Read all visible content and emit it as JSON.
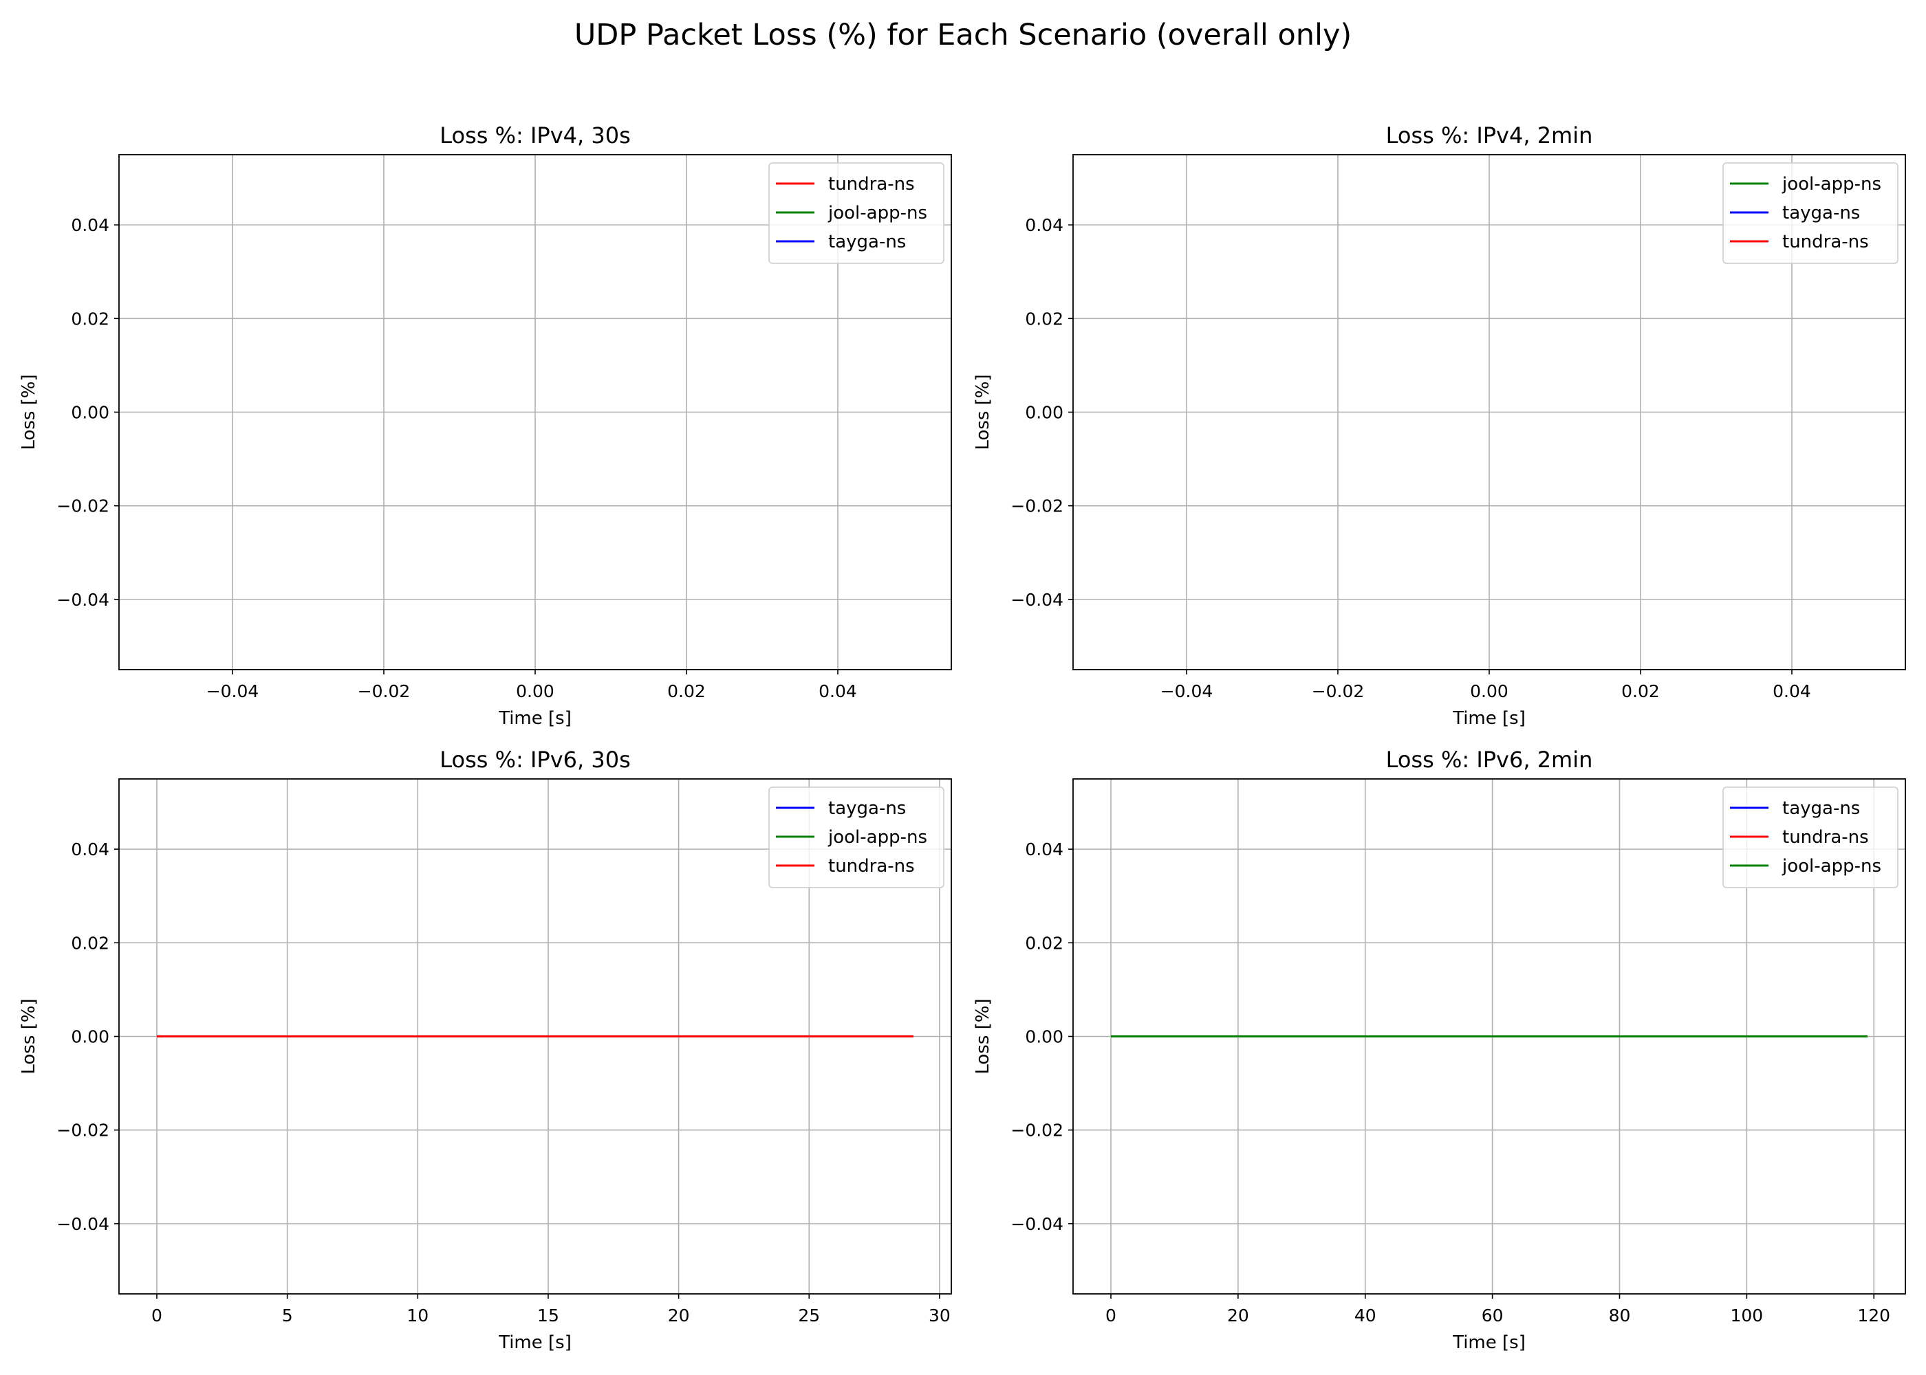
{
  "figure": {
    "suptitle": "UDP Packet Loss (%) for Each Scenario (overall only)"
  },
  "chart_data": [
    {
      "type": "line",
      "title": "Loss %: IPv4, 30s",
      "xlabel": "Time [s]",
      "ylabel": "Loss [%]",
      "xlim": [
        -0.055,
        0.055
      ],
      "ylim": [
        -0.055,
        0.055
      ],
      "xticks": [
        -0.04,
        -0.02,
        0.0,
        0.02,
        0.04
      ],
      "xtick_labels": [
        "−0.04",
        "−0.02",
        "0.00",
        "0.02",
        "0.04"
      ],
      "yticks": [
        -0.04,
        -0.02,
        0.0,
        0.02,
        0.04
      ],
      "ytick_labels": [
        "−0.04",
        "−0.02",
        "0.00",
        "0.02",
        "0.04"
      ],
      "grid": true,
      "legend_position": "top-right",
      "series": [
        {
          "name": "tundra-ns",
          "color": "#ff0000",
          "x": [],
          "y": []
        },
        {
          "name": "jool-app-ns",
          "color": "#008000",
          "x": [],
          "y": []
        },
        {
          "name": "tayga-ns",
          "color": "#0000ff",
          "x": [],
          "y": []
        }
      ]
    },
    {
      "type": "line",
      "title": "Loss %: IPv4, 2min",
      "xlabel": "Time [s]",
      "ylabel": "Loss [%]",
      "xlim": [
        -0.055,
        0.055
      ],
      "ylim": [
        -0.055,
        0.055
      ],
      "xticks": [
        -0.04,
        -0.02,
        0.0,
        0.02,
        0.04
      ],
      "xtick_labels": [
        "−0.04",
        "−0.02",
        "0.00",
        "0.02",
        "0.04"
      ],
      "yticks": [
        -0.04,
        -0.02,
        0.0,
        0.02,
        0.04
      ],
      "ytick_labels": [
        "−0.04",
        "−0.02",
        "0.00",
        "0.02",
        "0.04"
      ],
      "grid": true,
      "legend_position": "top-right",
      "series": [
        {
          "name": "jool-app-ns",
          "color": "#008000",
          "x": [],
          "y": []
        },
        {
          "name": "tayga-ns",
          "color": "#0000ff",
          "x": [],
          "y": []
        },
        {
          "name": "tundra-ns",
          "color": "#ff0000",
          "x": [],
          "y": []
        }
      ]
    },
    {
      "type": "line",
      "title": "Loss %: IPv6, 30s",
      "xlabel": "Time [s]",
      "ylabel": "Loss [%]",
      "xlim": [
        -1.45,
        30.45
      ],
      "ylim": [
        -0.055,
        0.055
      ],
      "xticks": [
        0,
        5,
        10,
        15,
        20,
        25,
        30
      ],
      "xtick_labels": [
        "0",
        "5",
        "10",
        "15",
        "20",
        "25",
        "30"
      ],
      "yticks": [
        -0.04,
        -0.02,
        0.0,
        0.02,
        0.04
      ],
      "ytick_labels": [
        "−0.04",
        "−0.02",
        "0.00",
        "0.02",
        "0.04"
      ],
      "grid": true,
      "legend_position": "top-right",
      "series": [
        {
          "name": "tayga-ns",
          "color": "#0000ff",
          "x": [
            0,
            29
          ],
          "y": [
            0,
            0
          ]
        },
        {
          "name": "jool-app-ns",
          "color": "#008000",
          "x": [
            0,
            29
          ],
          "y": [
            0,
            0
          ]
        },
        {
          "name": "tundra-ns",
          "color": "#ff0000",
          "x": [
            0,
            29
          ],
          "y": [
            0,
            0
          ]
        }
      ]
    },
    {
      "type": "line",
      "title": "Loss %: IPv6, 2min",
      "xlabel": "Time [s]",
      "ylabel": "Loss [%]",
      "xlim": [
        -5.95,
        124.95
      ],
      "ylim": [
        -0.055,
        0.055
      ],
      "xticks": [
        0,
        20,
        40,
        60,
        80,
        100,
        120
      ],
      "xtick_labels": [
        "0",
        "20",
        "40",
        "60",
        "80",
        "100",
        "120"
      ],
      "yticks": [
        -0.04,
        -0.02,
        0.0,
        0.02,
        0.04
      ],
      "ytick_labels": [
        "−0.04",
        "−0.02",
        "0.00",
        "0.02",
        "0.04"
      ],
      "grid": true,
      "legend_position": "top-right",
      "series": [
        {
          "name": "tayga-ns",
          "color": "#0000ff",
          "x": [
            0,
            119
          ],
          "y": [
            0,
            0
          ]
        },
        {
          "name": "tundra-ns",
          "color": "#ff0000",
          "x": [
            0,
            119
          ],
          "y": [
            0,
            0
          ]
        },
        {
          "name": "jool-app-ns",
          "color": "#008000",
          "x": [
            0,
            119
          ],
          "y": [
            0,
            0
          ]
        }
      ]
    }
  ]
}
